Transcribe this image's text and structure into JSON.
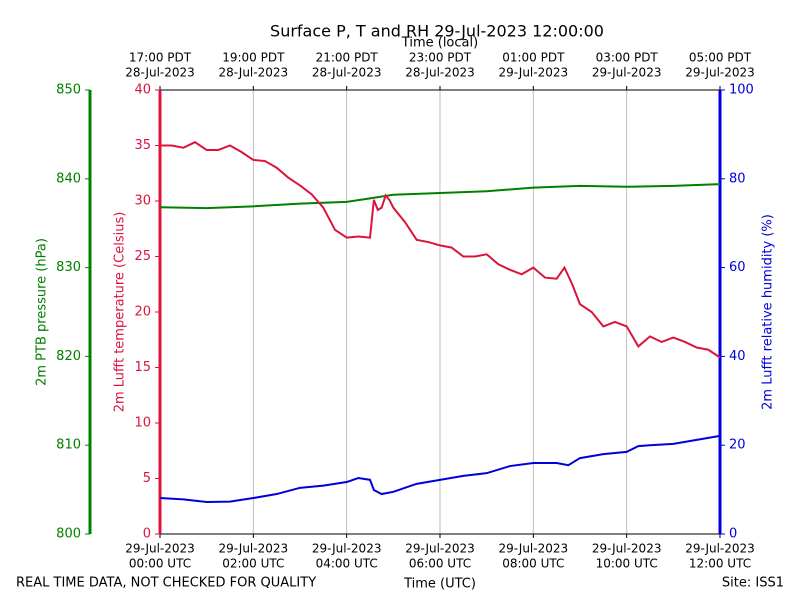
{
  "chart_data": {
    "type": "line",
    "title": "Surface P, T and RH 29-Jul-2023 12:00:00",
    "xlabel": "Time (UTC)",
    "x2label": "Time (local)",
    "ylabel": "2m Lufft temperature (Celsius)",
    "y2label": "2m Lufft relative humidity (%)",
    "y3label": "2m PTB pressure (hPa)",
    "footer_left": "REAL TIME DATA, NOT CHECKED FOR QUALITY",
    "footer_right": "Site: ISS1",
    "grid": true,
    "xlim": [
      "2023-07-29 00:00",
      "2023-07-29 12:00"
    ],
    "xticks": [
      {
        "value": "2023-07-29 00:00",
        "label": "00:00 UTC",
        "date": "29-Jul-2023"
      },
      {
        "value": "2023-07-29 02:00",
        "label": "02:00 UTC",
        "date": "29-Jul-2023"
      },
      {
        "value": "2023-07-29 04:00",
        "label": "04:00 UTC",
        "date": "29-Jul-2023"
      },
      {
        "value": "2023-07-29 06:00",
        "label": "06:00 UTC",
        "date": "29-Jul-2023"
      },
      {
        "value": "2023-07-29 08:00",
        "label": "08:00 UTC",
        "date": "29-Jul-2023"
      },
      {
        "value": "2023-07-29 10:00",
        "label": "10:00 UTC",
        "date": "29-Jul-2023"
      },
      {
        "value": "2023-07-29 12:00",
        "label": "12:00 UTC",
        "date": "29-Jul-2023"
      }
    ],
    "x2ticks": [
      {
        "value": "2023-07-29 00:00",
        "label": "17:00 PDT",
        "date": "28-Jul-2023"
      },
      {
        "value": "2023-07-29 02:00",
        "label": "19:00 PDT",
        "date": "28-Jul-2023"
      },
      {
        "value": "2023-07-29 04:00",
        "label": "21:00 PDT",
        "date": "28-Jul-2023"
      },
      {
        "value": "2023-07-29 06:00",
        "label": "23:00 PDT",
        "date": "28-Jul-2023"
      },
      {
        "value": "2023-07-29 08:00",
        "label": "01:00 PDT",
        "date": "29-Jul-2023"
      },
      {
        "value": "2023-07-29 10:00",
        "label": "03:00 PDT",
        "date": "29-Jul-2023"
      },
      {
        "value": "2023-07-29 12:00",
        "label": "05:00 PDT",
        "date": "29-Jul-2023"
      }
    ],
    "ylim": [
      0,
      40
    ],
    "yticks": [
      0,
      5,
      10,
      15,
      20,
      25,
      30,
      35,
      40
    ],
    "y2lim": [
      0,
      100
    ],
    "y2ticks": [
      0,
      20,
      40,
      60,
      80,
      100
    ],
    "y3lim": [
      800,
      850
    ],
    "y3ticks": [
      800,
      810,
      820,
      830,
      840,
      850
    ],
    "series": [
      {
        "name": "2m PTB pressure",
        "color": "#008000",
        "axis": "y3",
        "x": [
          "2023-07-29 00:00",
          "2023-07-29 01:00",
          "2023-07-29 02:00",
          "2023-07-29 03:00",
          "2023-07-29 04:00",
          "2023-07-29 04:30",
          "2023-07-29 05:00",
          "2023-07-29 06:00",
          "2023-07-29 07:00",
          "2023-07-29 08:00",
          "2023-07-29 09:00",
          "2023-07-29 10:00",
          "2023-07-29 11:00",
          "2023-07-29 12:00"
        ],
        "values": [
          836.8,
          836.7,
          836.9,
          837.2,
          837.4,
          837.8,
          838.2,
          838.4,
          838.6,
          839.0,
          839.2,
          839.1,
          839.2,
          839.4
        ]
      },
      {
        "name": "2m Lufft temperature",
        "color": "#dc143c",
        "axis": "y",
        "x": [
          "2023-07-29 00:00",
          "2023-07-29 00:15",
          "2023-07-29 00:30",
          "2023-07-29 00:45",
          "2023-07-29 01:00",
          "2023-07-29 01:15",
          "2023-07-29 01:30",
          "2023-07-29 01:45",
          "2023-07-29 02:00",
          "2023-07-29 02:15",
          "2023-07-29 02:30",
          "2023-07-29 02:45",
          "2023-07-29 03:00",
          "2023-07-29 03:15",
          "2023-07-29 03:30",
          "2023-07-29 03:45",
          "2023-07-29 04:00",
          "2023-07-29 04:15",
          "2023-07-29 04:30",
          "2023-07-29 04:35",
          "2023-07-29 04:40",
          "2023-07-29 04:45",
          "2023-07-29 04:50",
          "2023-07-29 04:55",
          "2023-07-29 05:00",
          "2023-07-29 05:15",
          "2023-07-29 05:30",
          "2023-07-29 05:45",
          "2023-07-29 06:00",
          "2023-07-29 06:15",
          "2023-07-29 06:30",
          "2023-07-29 06:45",
          "2023-07-29 07:00",
          "2023-07-29 07:15",
          "2023-07-29 07:30",
          "2023-07-29 07:45",
          "2023-07-29 08:00",
          "2023-07-29 08:15",
          "2023-07-29 08:30",
          "2023-07-29 08:40",
          "2023-07-29 08:50",
          "2023-07-29 09:00",
          "2023-07-29 09:15",
          "2023-07-29 09:30",
          "2023-07-29 09:45",
          "2023-07-29 10:00",
          "2023-07-29 10:15",
          "2023-07-29 10:30",
          "2023-07-29 10:45",
          "2023-07-29 11:00",
          "2023-07-29 11:15",
          "2023-07-29 11:30",
          "2023-07-29 11:45",
          "2023-07-29 12:00"
        ],
        "values": [
          35.0,
          35.0,
          34.8,
          35.3,
          34.6,
          34.6,
          35.0,
          34.4,
          33.7,
          33.6,
          33.0,
          32.1,
          31.4,
          30.6,
          29.4,
          27.4,
          26.7,
          26.8,
          26.7,
          30.1,
          29.2,
          29.4,
          30.5,
          30.1,
          29.4,
          28.1,
          26.5,
          26.3,
          26.0,
          25.8,
          25.0,
          25.0,
          25.2,
          24.3,
          23.8,
          23.4,
          24.0,
          23.1,
          23.0,
          24.0,
          22.5,
          20.7,
          20.0,
          18.7,
          19.1,
          18.7,
          16.9,
          17.8,
          17.3,
          17.7,
          17.3,
          16.8,
          16.6,
          15.9
        ]
      },
      {
        "name": "2m Lufft relative humidity",
        "color": "#0000dd",
        "axis": "y2",
        "x": [
          "2023-07-29 00:00",
          "2023-07-29 00:30",
          "2023-07-29 01:00",
          "2023-07-29 01:30",
          "2023-07-29 02:00",
          "2023-07-29 02:30",
          "2023-07-29 03:00",
          "2023-07-29 03:30",
          "2023-07-29 04:00",
          "2023-07-29 04:15",
          "2023-07-29 04:30",
          "2023-07-29 04:35",
          "2023-07-29 04:45",
          "2023-07-29 05:00",
          "2023-07-29 05:30",
          "2023-07-29 06:00",
          "2023-07-29 06:30",
          "2023-07-29 07:00",
          "2023-07-29 07:30",
          "2023-07-29 08:00",
          "2023-07-29 08:30",
          "2023-07-29 08:45",
          "2023-07-29 09:00",
          "2023-07-29 09:30",
          "2023-07-29 10:00",
          "2023-07-29 10:15",
          "2023-07-29 10:30",
          "2023-07-29 11:00",
          "2023-07-29 11:30",
          "2023-07-29 12:00"
        ],
        "values": [
          8.1,
          7.8,
          7.2,
          7.3,
          8.1,
          9.0,
          10.4,
          10.9,
          11.7,
          12.6,
          12.2,
          9.9,
          9.0,
          9.5,
          11.3,
          12.2,
          13.1,
          13.7,
          15.3,
          16.0,
          16.0,
          15.5,
          17.1,
          18.0,
          18.5,
          19.8,
          20.0,
          20.3,
          21.2,
          22.1
        ]
      }
    ]
  }
}
